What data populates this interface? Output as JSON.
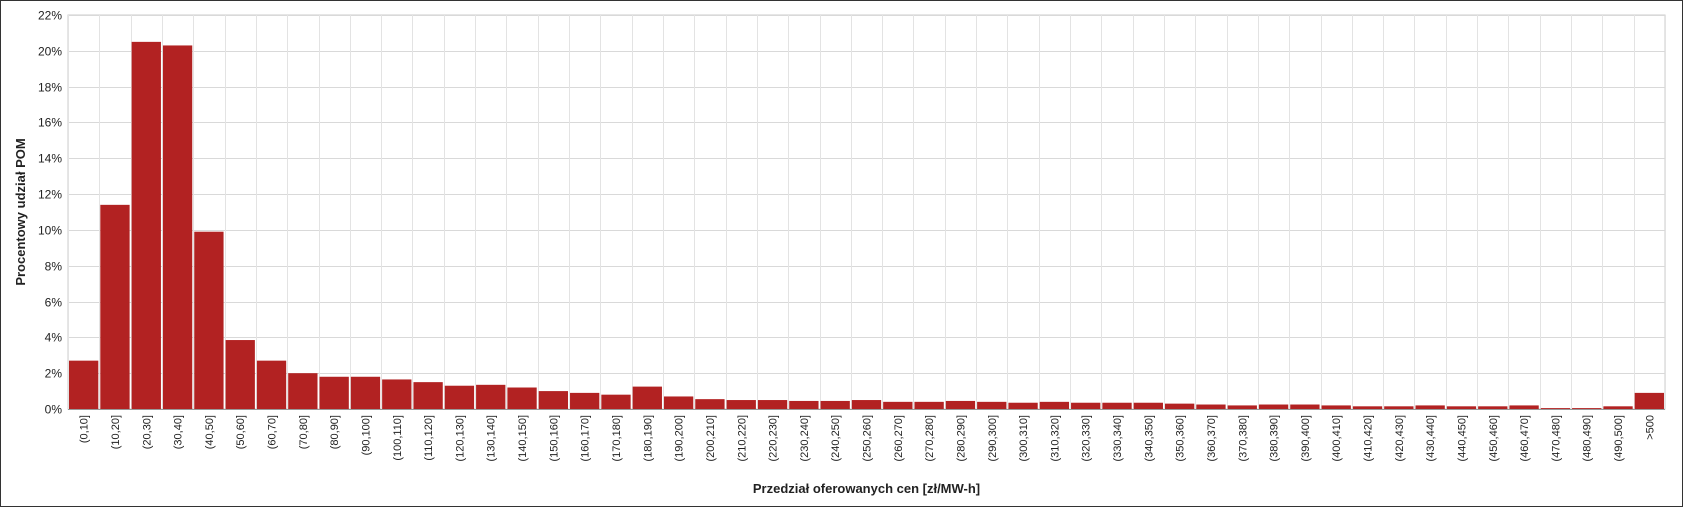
{
  "chart_data": {
    "type": "bar",
    "xlabel": "Przedział oferowanych cen [zł/MW-h]",
    "ylabel": "Procentowy udział POM",
    "ylim": [
      0,
      22
    ],
    "yticks": [
      "0%",
      "2%",
      "4%",
      "6%",
      "8%",
      "10%",
      "12%",
      "14%",
      "16%",
      "18%",
      "20%",
      "22%"
    ],
    "ytick_values": [
      0,
      2,
      4,
      6,
      8,
      10,
      12,
      14,
      16,
      18,
      20,
      22
    ],
    "grid": true,
    "bar_color": "#b22222",
    "categories": [
      "(0,10]",
      "(10,20]",
      "(20,30]",
      "(30,40]",
      "(40,50]",
      "(50,60]",
      "(60,70]",
      "(70,80]",
      "(80,90]",
      "(90,100]",
      "(100,110]",
      "(110,120]",
      "(120,130]",
      "(130,140]",
      "(140,150]",
      "(150,160]",
      "(160,170]",
      "(170,180]",
      "(180,190]",
      "(190,200]",
      "(200,210]",
      "(210,220]",
      "(220,230]",
      "(230,240]",
      "(240,250]",
      "(250,260]",
      "(260,270]",
      "(270,280]",
      "(280,290]",
      "(290,300]",
      "(300,310]",
      "(310,320]",
      "(320,330]",
      "(330,340]",
      "(340,350]",
      "(350,360]",
      "(360,370]",
      "(370,380]",
      "(380,390]",
      "(390,400]",
      "(400,410]",
      "(410,420]",
      "(420,430]",
      "(430,440]",
      "(440,450]",
      "(450,460]",
      "(460,470]",
      "(470,480]",
      "(480,490]",
      "(490,500]",
      ">500"
    ],
    "values": [
      2.7,
      11.4,
      20.5,
      20.3,
      9.9,
      3.85,
      2.7,
      2.0,
      1.8,
      1.8,
      1.65,
      1.5,
      1.3,
      1.35,
      1.2,
      1.0,
      0.9,
      0.8,
      1.25,
      0.7,
      0.55,
      0.5,
      0.5,
      0.45,
      0.45,
      0.5,
      0.4,
      0.4,
      0.45,
      0.4,
      0.35,
      0.4,
      0.35,
      0.35,
      0.35,
      0.3,
      0.25,
      0.2,
      0.25,
      0.25,
      0.2,
      0.15,
      0.15,
      0.2,
      0.15,
      0.15,
      0.2,
      0.05,
      0.05,
      0.15,
      0.9
    ]
  }
}
